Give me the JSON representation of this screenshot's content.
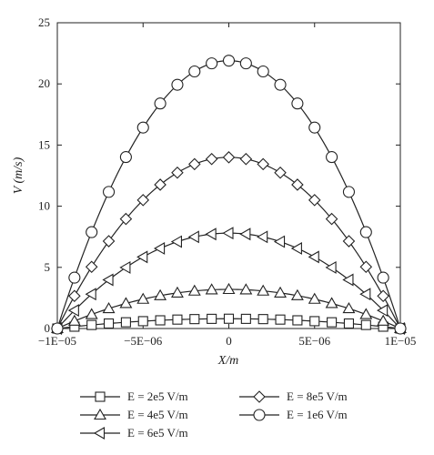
{
  "chart_data": {
    "type": "line",
    "xlabel": "X/m",
    "ylabel": "V (m/s)",
    "xlim": [
      -1e-05,
      1e-05
    ],
    "ylim": [
      0,
      25
    ],
    "x_ticks": [
      -1e-05,
      -5e-06,
      0,
      5e-06,
      1e-05
    ],
    "x_tick_labels": [
      "−1E−05",
      "−5E−06",
      "0",
      "5E−06",
      "1E−05"
    ],
    "y_ticks": [
      0,
      5,
      10,
      15,
      20,
      25
    ],
    "y_tick_labels": [
      "0",
      "5",
      "10",
      "15",
      "20",
      "25"
    ],
    "grid": false,
    "legend_position": "bottom",
    "line_color": "#222222",
    "x": [
      -1e-05,
      -9e-06,
      -8e-06,
      -7e-06,
      -6e-06,
      -5e-06,
      -4e-06,
      -3e-06,
      -2e-06,
      -1e-06,
      0,
      1e-06,
      2e-06,
      3e-06,
      4e-06,
      5e-06,
      6e-06,
      7e-06,
      8e-06,
      9e-06,
      1e-05
    ],
    "series": [
      {
        "name": "E = 2e5 V/m",
        "marker": "square",
        "peak": 0.8,
        "values": [
          0,
          0.15,
          0.29,
          0.41,
          0.51,
          0.6,
          0.67,
          0.73,
          0.77,
          0.79,
          0.8,
          0.79,
          0.77,
          0.73,
          0.67,
          0.6,
          0.51,
          0.41,
          0.29,
          0.15,
          0
        ]
      },
      {
        "name": "E = 4e5 V/m",
        "marker": "triangle-up",
        "peak": 3.2,
        "values": [
          0,
          0.61,
          1.15,
          1.63,
          2.05,
          2.4,
          2.69,
          2.91,
          3.07,
          3.17,
          3.2,
          3.17,
          3.07,
          2.91,
          2.69,
          2.4,
          2.05,
          1.63,
          1.15,
          0.61,
          0
        ]
      },
      {
        "name": "E = 6e5 V/m",
        "marker": "triangle-left",
        "peak": 7.8,
        "values": [
          0,
          1.48,
          2.81,
          3.98,
          4.99,
          5.85,
          6.55,
          7.1,
          7.49,
          7.72,
          7.8,
          7.72,
          7.49,
          7.1,
          6.55,
          5.85,
          4.99,
          3.98,
          2.81,
          1.48,
          0
        ]
      },
      {
        "name": "E = 8e5 V/m",
        "marker": "diamond",
        "peak": 14.0,
        "values": [
          0,
          2.66,
          5.04,
          7.14,
          8.96,
          10.5,
          11.76,
          12.74,
          13.44,
          13.86,
          14.0,
          13.86,
          13.44,
          12.74,
          11.76,
          10.5,
          8.96,
          7.14,
          5.04,
          2.66,
          0
        ]
      },
      {
        "name": "E = 1e6 V/m",
        "marker": "circle",
        "peak": 21.9,
        "values": [
          0,
          4.16,
          7.88,
          11.17,
          14.02,
          16.43,
          18.4,
          19.93,
          21.02,
          21.68,
          21.9,
          21.68,
          21.02,
          19.93,
          18.4,
          16.43,
          14.02,
          11.17,
          7.88,
          4.16,
          0
        ]
      }
    ]
  },
  "legend": {
    "items": [
      {
        "label": "E = 2e5 V/m",
        "marker": "square"
      },
      {
        "label": "E = 4e5 V/m",
        "marker": "triangle-up"
      },
      {
        "label": "E = 6e5 V/m",
        "marker": "triangle-left"
      },
      {
        "label": "E = 8e5 V/m",
        "marker": "diamond"
      },
      {
        "label": "E = 1e6 V/m",
        "marker": "circle"
      }
    ]
  }
}
